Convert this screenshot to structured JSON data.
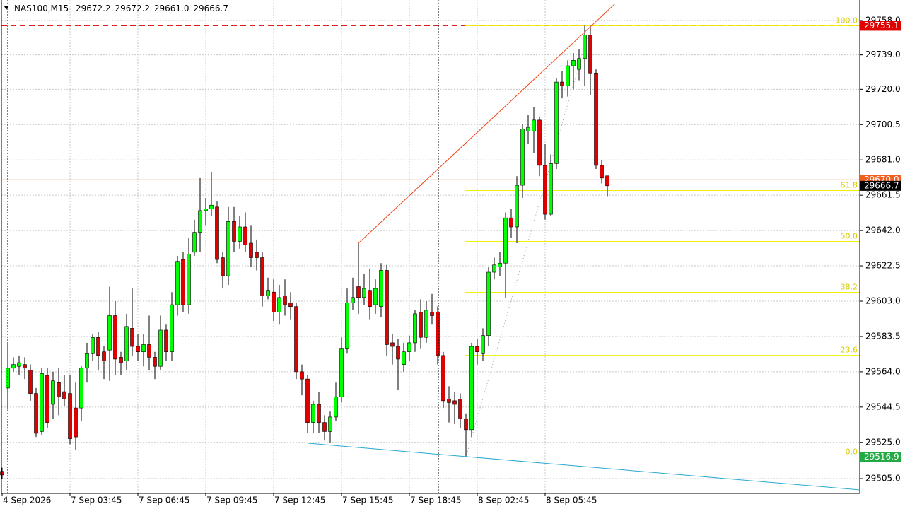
{
  "chart_data": {
    "type": "candlestick",
    "header": {
      "symbol": "NAS100,M15",
      "values": [
        "29672.2",
        "29672.2",
        "29661.0",
        "29666.7"
      ]
    },
    "categories": [
      "4 Sep 2026",
      null,
      null,
      null,
      null,
      null,
      null,
      null,
      null,
      null,
      null,
      null,
      "7 Sep 03:45",
      null,
      null,
      null,
      null,
      null,
      null,
      null,
      null,
      null,
      null,
      null,
      "7 Sep 06:45",
      null,
      null,
      null,
      null,
      null,
      null,
      null,
      null,
      null,
      null,
      null,
      "7 Sep 09:45",
      null,
      null,
      null,
      null,
      null,
      null,
      null,
      null,
      null,
      null,
      null,
      "7 Sep 12:45",
      null,
      null,
      null,
      null,
      null,
      null,
      null,
      null,
      null,
      null,
      null,
      "7 Sep 15:45",
      null,
      null,
      null,
      null,
      null,
      null,
      null,
      null,
      null,
      null,
      null,
      "7 Sep 18:45",
      null,
      null,
      null,
      null,
      null,
      null,
      null,
      null,
      null,
      null,
      null,
      "8 Sep 02:45",
      null,
      null,
      null,
      null,
      null,
      null,
      null,
      null,
      null,
      null,
      null,
      "8 Sep 05:45",
      null,
      null,
      null,
      null,
      null,
      null,
      null,
      null,
      null,
      null,
      null
    ],
    "open": [
      29509,
      29555,
      29566,
      29567,
      29568,
      29565,
      29552,
      29531,
      29562,
      29546,
      29558,
      29553,
      29552,
      29544,
      29544,
      29566,
      29574,
      29583,
      29575,
      29576,
      29595,
      29572,
      29570,
      29588,
      29578,
      29575,
      29579,
      29572,
      29567,
      29587,
      29575,
      29601,
      29626,
      29601,
      29630,
      29641,
      29653,
      29654,
      29655,
      29627,
      29617,
      29647,
      29636,
      29644,
      29635,
      29630,
      29627,
      29606,
      29608,
      29597,
      29606,
      29602,
      29600,
      29564,
      29560,
      29536,
      29546,
      29536,
      29531,
      29539,
      29550,
      29577,
      29602,
      29611,
      29605,
      29609,
      29601,
      29600,
      29620,
      29580,
      29578,
      29568,
      29575,
      29580,
      29597,
      29583,
      29597,
      29597,
      29573,
      29549,
      29548,
      29549,
      29538,
      29532,
      29578,
      29574,
      29584,
      29619,
      29622,
      29624,
      29649,
      29644,
      29667,
      29697,
      29697,
      29703,
      29678,
      29651,
      29679,
      29724,
      29722,
      29733,
      29731,
      29737,
      29750,
      29729,
      29678,
      29672.2
    ],
    "high": [
      29511,
      29580,
      29572,
      29573,
      29572,
      29568,
      29555,
      29566,
      29566,
      29564,
      29566,
      29562,
      29562,
      29558,
      29567,
      29580,
      29585,
      29586,
      29578,
      29611,
      29603,
      29575,
      29596,
      29610,
      29585,
      29585,
      29595,
      29575,
      29595,
      29590,
      29608,
      29628,
      29630,
      29638,
      29648,
      29671,
      29660,
      29674,
      29658,
      29630,
      29655,
      29655,
      29650,
      29652,
      29645,
      29637,
      29630,
      29616,
      29615,
      29612,
      29615,
      29608,
      29602,
      29568,
      29562,
      29548,
      29553,
      29540,
      29542,
      29558,
      29583,
      29610,
      29616,
      29635,
      29618,
      29621,
      29615,
      29624,
      29623,
      29585,
      29582,
      29580,
      29584,
      29598,
      29604,
      29603,
      29607,
      29600,
      29575,
      29556,
      29553,
      29552,
      29541,
      29580,
      29582,
      29588,
      29622,
      29627,
      29630,
      29652,
      29654,
      29672,
      29701,
      29706,
      29710,
      29705,
      29690,
      29684,
      29726,
      29730,
      29736,
      29740,
      29742,
      29755.1,
      29755,
      29731,
      29681,
      29672.2
    ],
    "low": [
      29505,
      29543,
      29564,
      29562,
      29560,
      29548,
      29528,
      29529,
      29533,
      29538,
      29540,
      29545,
      29524,
      29521,
      29537,
      29558,
      29570,
      29565,
      29560,
      29559,
      29562,
      29562,
      29565,
      29573,
      29570,
      29567,
      29565,
      29560,
      29565,
      29570,
      29570,
      29595,
      29597,
      29596,
      29628,
      29630,
      29645,
      29650,
      29624,
      29610,
      29612,
      29630,
      29632,
      29630,
      29622,
      29620,
      29600,
      29604,
      29592,
      29590,
      29595,
      29593,
      29560,
      29551,
      29530,
      29530,
      29530,
      29526,
      29525,
      29537,
      29547,
      29574,
      29598,
      29596,
      29601,
      29593,
      29596,
      29594,
      29573,
      29568,
      29554,
      29564,
      29570,
      29575,
      29577,
      29580,
      29590,
      29568,
      29544,
      29536,
      29535,
      29533,
      29517,
      29528,
      29568,
      29570,
      29578,
      29615,
      29617,
      29605,
      29638,
      29635,
      29660,
      29690,
      29685,
      29672,
      29648,
      29650,
      29676,
      29715,
      29716,
      29720,
      29725,
      29722,
      29717,
      29676,
      29668,
      29661
    ],
    "close": [
      29507,
      29566,
      29568,
      29569,
      29566,
      29552,
      29530,
      29563,
      29536,
      29559,
      29550,
      29549,
      29527,
      29528,
      29566,
      29574,
      29583,
      29573,
      29570,
      29595,
      29571,
      29569,
      29589,
      29578,
      29575,
      29579,
      29572,
      29567,
      29587,
      29575,
      29601,
      29625,
      29601,
      29629,
      29641,
      29653,
      29654,
      29656,
      29626,
      29617,
      29647,
      29636,
      29644,
      29634,
      29627,
      29627,
      29606,
      29609,
      29597,
      29605,
      29601,
      29600,
      29564,
      29560,
      29536,
      29546,
      29536,
      29531,
      29539,
      29550,
      29577,
      29602,
      29605,
      29605,
      29610,
      29600,
      29610,
      29620,
      29579,
      29578,
      29571,
      29575,
      29580,
      29596,
      29583,
      29598,
      29595,
      29573,
      29548,
      29547,
      29546,
      29538,
      29532,
      29578,
      29575,
      29584,
      29619,
      29623,
      29624,
      29649,
      29644,
      29667,
      29698,
      29699,
      29703,
      29678,
      29651,
      29679,
      29724,
      29722,
      29733,
      29736,
      29737,
      29750,
      29729,
      29678,
      29671,
      29666.7
    ],
    "up_color": "#00ff00",
    "down_color": "#e00000",
    "ylim": [
      29505,
      29758
    ],
    "yticks": [
      {
        "value": 29758,
        "label": "29758.0"
      },
      {
        "value": 29739,
        "label": "29739.0"
      },
      {
        "value": 29720,
        "label": "29720.0"
      },
      29700.5,
      {
        "value": 29681,
        "label": "29681.0"
      },
      29661.5,
      {
        "value": 29642,
        "label": "29642.0"
      },
      29622.5,
      {
        "value": 29603,
        "label": "29603.0"
      },
      29583.5,
      {
        "value": 29564,
        "label": "29564.0"
      },
      29544.5,
      {
        "value": 29525,
        "label": "29525.0"
      },
      {
        "value": 29505,
        "label": "29505.0"
      }
    ],
    "grid": true,
    "hlines": [
      {
        "price": 29755.1,
        "color": "#d40000",
        "style": "dashed"
      },
      {
        "price": 29670,
        "color": "#f06020",
        "style": "solid"
      },
      {
        "price": 29516.9,
        "color": "#22aa44",
        "style": "dashed"
      }
    ],
    "trendlines": [
      {
        "color": "#f04010",
        "x": [
          63,
          108.375
        ],
        "price": [
          29635,
          29767.3
        ]
      },
      {
        "color": "#2aa8d0",
        "x": [
          54.125,
          151.5
        ],
        "price": [
          29524.5,
          29498.8
        ]
      }
    ],
    "fibonacci": {
      "color": "#f0f000",
      "x": [
        82,
        104
      ],
      "price": [
        29516.9,
        29755.1
      ],
      "levels": [
        {
          "label": "100.0",
          "price": 29755.1
        },
        {
          "label": "61.8",
          "price": 29664.1
        },
        {
          "label": "50.0",
          "price": 29636.0
        },
        {
          "label": "38.2",
          "price": 29607.9
        },
        {
          "label": "23.6",
          "price": 29573.1
        },
        {
          "label": "0.0",
          "price": 29516.9
        }
      ]
    },
    "price_tags": [
      {
        "value": 29755.1,
        "color": "#e00000"
      },
      {
        "value": 29670,
        "label": "29670.0",
        "color": "#f06020"
      },
      {
        "value": 29666.7,
        "color": "#000000"
      },
      {
        "value": 29516.9,
        "color": "#22aa44"
      }
    ]
  }
}
